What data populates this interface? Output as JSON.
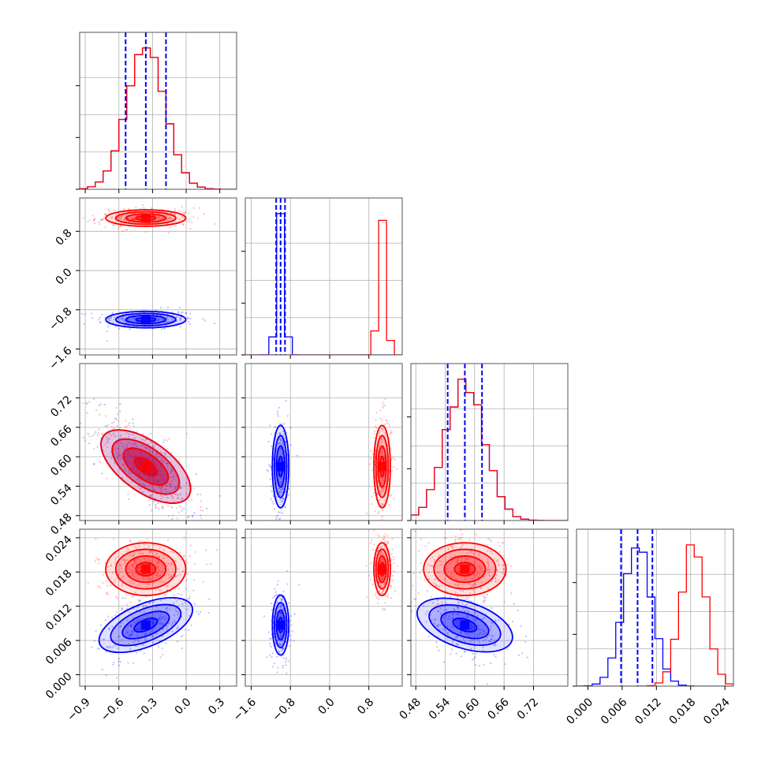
{
  "colors": {
    "series_a": "#0000ff",
    "series_b": "#ff0000",
    "grid": "#b0b0b0",
    "frame": "#000000"
  },
  "chart_data": {
    "type": "corner",
    "n_parameters": 4,
    "grid": true,
    "series": [
      {
        "color": "blue",
        "means": [
          -0.36,
          -1.0,
          0.58,
          0.0087
        ],
        "sigmas": [
          0.17,
          0.08,
          0.04,
          0.0025
        ],
        "quantiles": [
          [
            -0.54,
            -0.36,
            -0.18
          ],
          [
            -1.09,
            -1.0,
            -0.91
          ],
          [
            0.545,
            0.58,
            0.615
          ],
          [
            0.0058,
            0.0087,
            0.0113
          ]
        ]
      },
      {
        "color": "red",
        "means": [
          -0.36,
          1.07,
          0.58,
          0.0185
        ],
        "sigmas": [
          0.17,
          0.08,
          0.04,
          0.0022
        ]
      }
    ],
    "ranges": [
      [
        -0.95,
        0.45
      ],
      [
        -1.72,
        1.48
      ],
      [
        0.47,
        0.79
      ],
      [
        -0.002,
        0.0255
      ]
    ],
    "x_ticks": [
      [
        "−0.9",
        "−0.6",
        "−0.3",
        "0.0",
        "0.3"
      ],
      [
        "−1.6",
        "−0.8",
        "0.0",
        "0.8"
      ],
      [
        "0.48",
        "0.54",
        "0.60",
        "0.66",
        "0.72"
      ],
      [
        "0.000",
        "0.006",
        "0.012",
        "0.018",
        "0.024"
      ]
    ],
    "y_ticks": [
      null,
      [
        "0.8",
        "0.0",
        "−0.8",
        "−1.6"
      ],
      [
        "0.72",
        "0.66",
        "0.60",
        "0.54",
        "0.48"
      ],
      [
        "0.024",
        "0.018",
        "0.012",
        "0.006",
        "0.000"
      ]
    ],
    "x_tick_values": [
      [
        -0.9,
        -0.6,
        -0.3,
        0.0,
        0.3
      ],
      [
        -1.6,
        -0.8,
        0.0,
        0.8
      ],
      [
        0.48,
        0.54,
        0.6,
        0.66,
        0.72
      ],
      [
        0.0,
        0.006,
        0.012,
        0.018,
        0.024
      ]
    ],
    "y_tick_values": [
      null,
      [
        0.8,
        0.0,
        -0.8,
        -1.6
      ],
      [
        0.72,
        0.66,
        0.6,
        0.54,
        0.48
      ],
      [
        0.024,
        0.018,
        0.012,
        0.006,
        0.0
      ]
    ]
  }
}
